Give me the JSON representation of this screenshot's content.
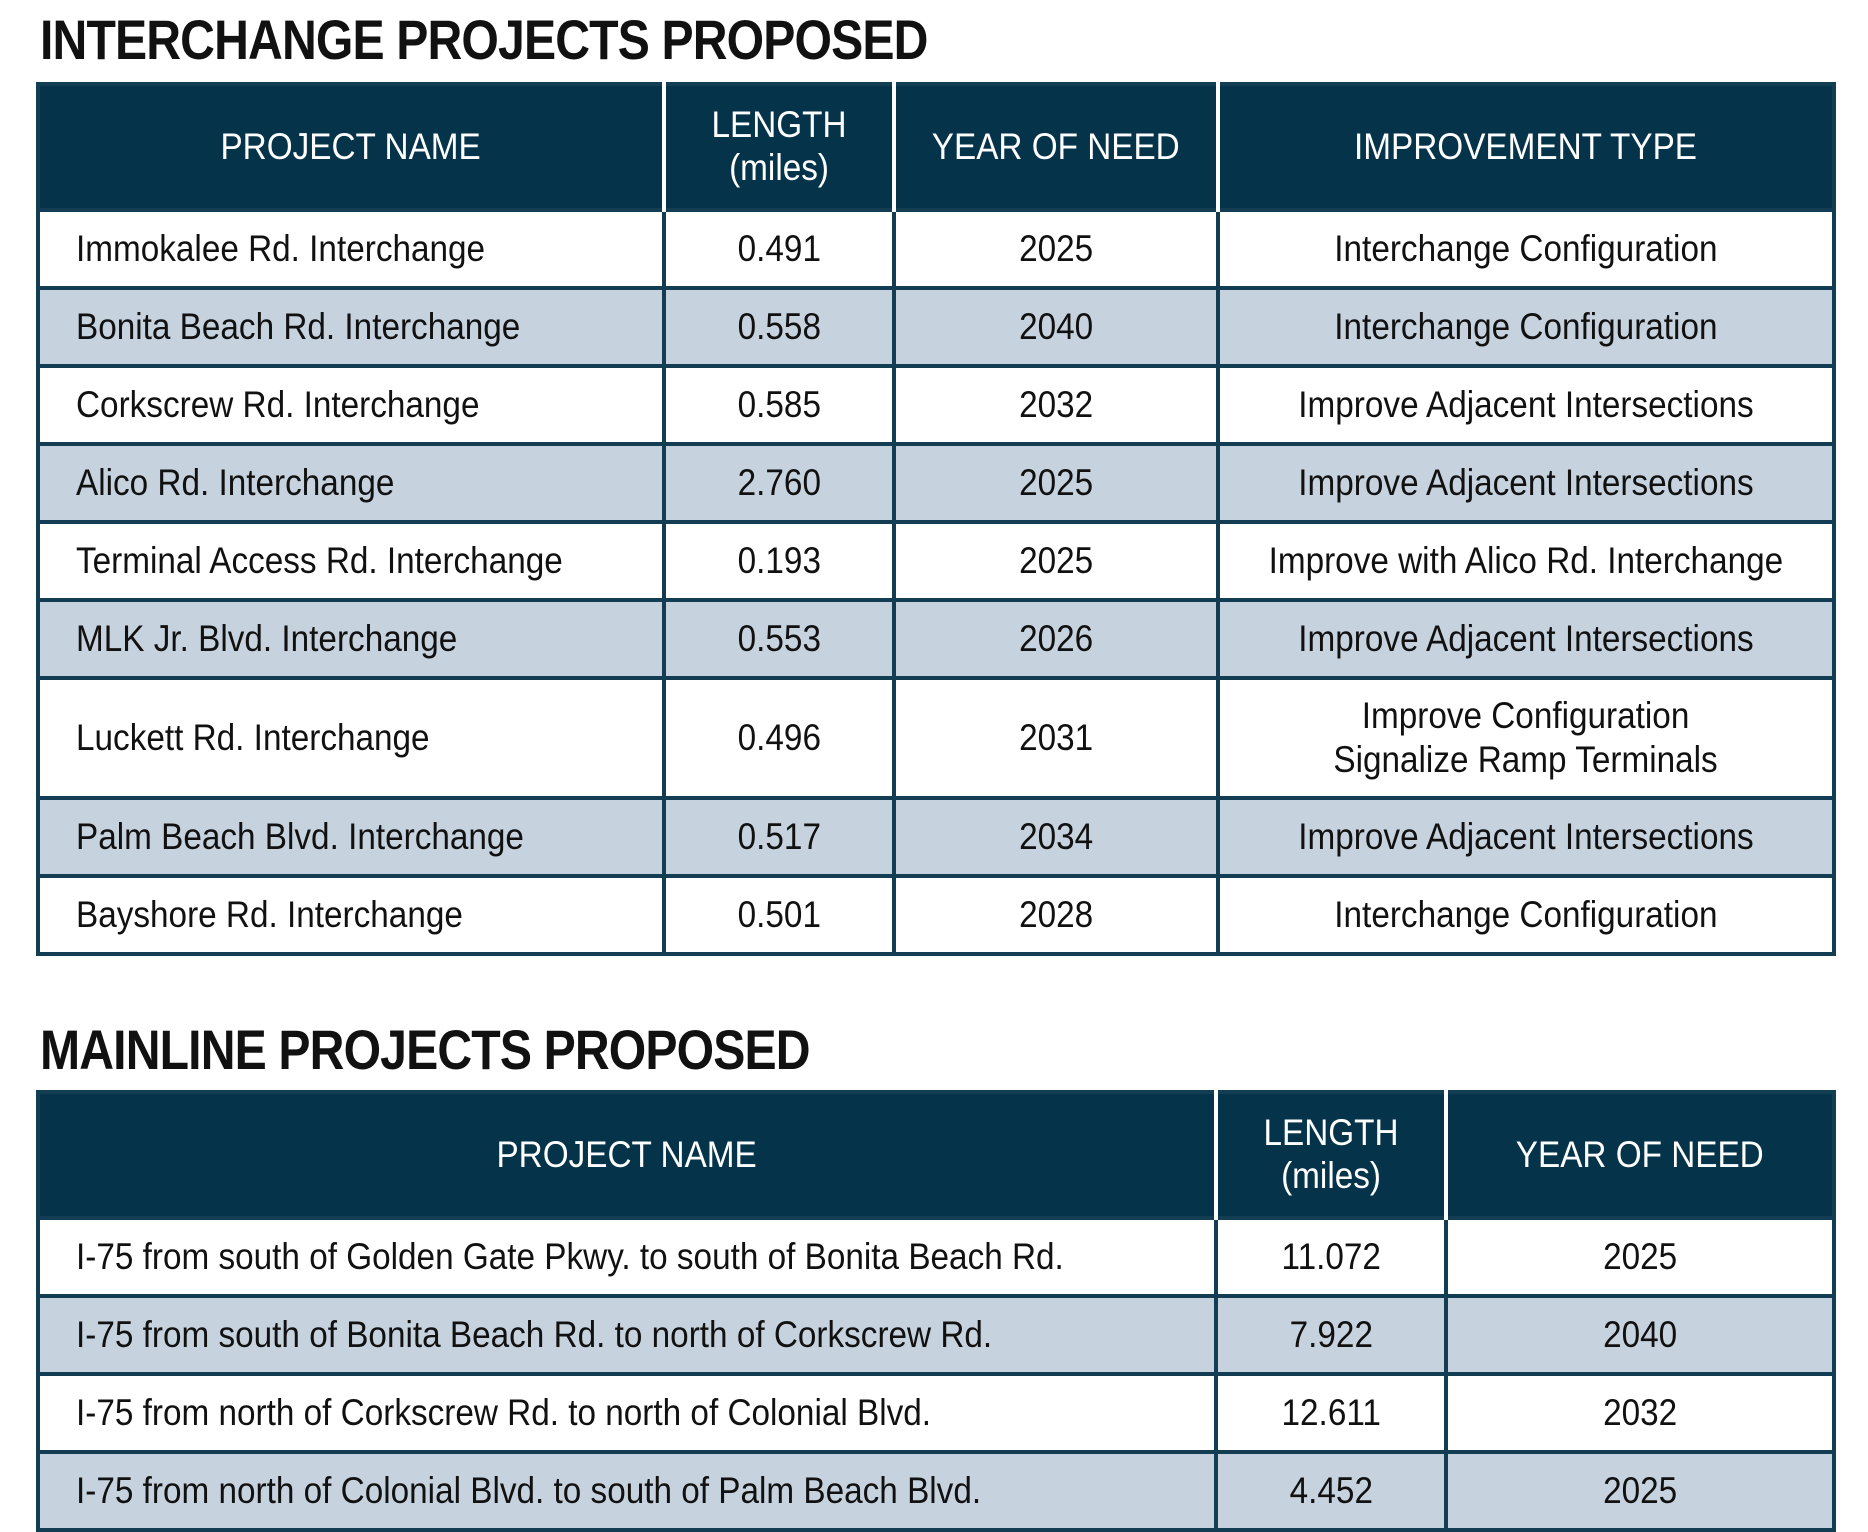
{
  "interchange": {
    "title": "INTERCHANGE PROJECTS PROPOSED",
    "headers": {
      "project_name": "PROJECT NAME",
      "length_line1": "LENGTH",
      "length_line2": "(miles)",
      "year_of_need": "YEAR OF NEED",
      "improvement_type": "IMPROVEMENT TYPE"
    },
    "rows": [
      {
        "name": "Immokalee Rd. Interchange",
        "length": "0.491",
        "year": "2025",
        "improvement": "Interchange Configuration",
        "improvement_line2": ""
      },
      {
        "name": "Bonita Beach Rd. Interchange",
        "length": "0.558",
        "year": "2040",
        "improvement": "Interchange Configuration",
        "improvement_line2": ""
      },
      {
        "name": "Corkscrew Rd. Interchange",
        "length": "0.585",
        "year": "2032",
        "improvement": "Improve Adjacent Intersections",
        "improvement_line2": ""
      },
      {
        "name": "Alico Rd. Interchange",
        "length": "2.760",
        "year": "2025",
        "improvement": "Improve Adjacent Intersections",
        "improvement_line2": ""
      },
      {
        "name": "Terminal Access Rd. Interchange",
        "length": "0.193",
        "year": "2025",
        "improvement": "Improve with Alico Rd. Interchange",
        "improvement_line2": ""
      },
      {
        "name": "MLK Jr. Blvd. Interchange",
        "length": "0.553",
        "year": "2026",
        "improvement": "Improve Adjacent Intersections",
        "improvement_line2": ""
      },
      {
        "name": "Luckett Rd. Interchange",
        "length": "0.496",
        "year": "2031",
        "improvement": "Improve Configuration",
        "improvement_line2": "Signalize Ramp Terminals"
      },
      {
        "name": "Palm Beach Blvd. Interchange",
        "length": "0.517",
        "year": "2034",
        "improvement": "Improve Adjacent Intersections",
        "improvement_line2": ""
      },
      {
        "name": "Bayshore Rd. Interchange",
        "length": "0.501",
        "year": "2028",
        "improvement": "Interchange Configuration",
        "improvement_line2": ""
      }
    ]
  },
  "mainline": {
    "title": "MAINLINE PROJECTS PROPOSED",
    "headers": {
      "project_name": "PROJECT NAME",
      "length_line1": "LENGTH",
      "length_line2": "(miles)",
      "year_of_need": "YEAR OF NEED"
    },
    "rows": [
      {
        "name": "I-75 from south of Golden Gate Pkwy. to south of Bonita Beach Rd.",
        "length": "11.072",
        "year": "2025"
      },
      {
        "name": "I-75 from south of Bonita Beach Rd. to north of Corkscrew Rd.",
        "length": "7.922",
        "year": "2040"
      },
      {
        "name": "I-75 from north of Corkscrew Rd. to north of Colonial Blvd.",
        "length": "12.611",
        "year": "2032"
      },
      {
        "name": "I-75 from north of Colonial Blvd. to south of Palm Beach Blvd.",
        "length": "4.452",
        "year": "2025"
      }
    ]
  }
}
